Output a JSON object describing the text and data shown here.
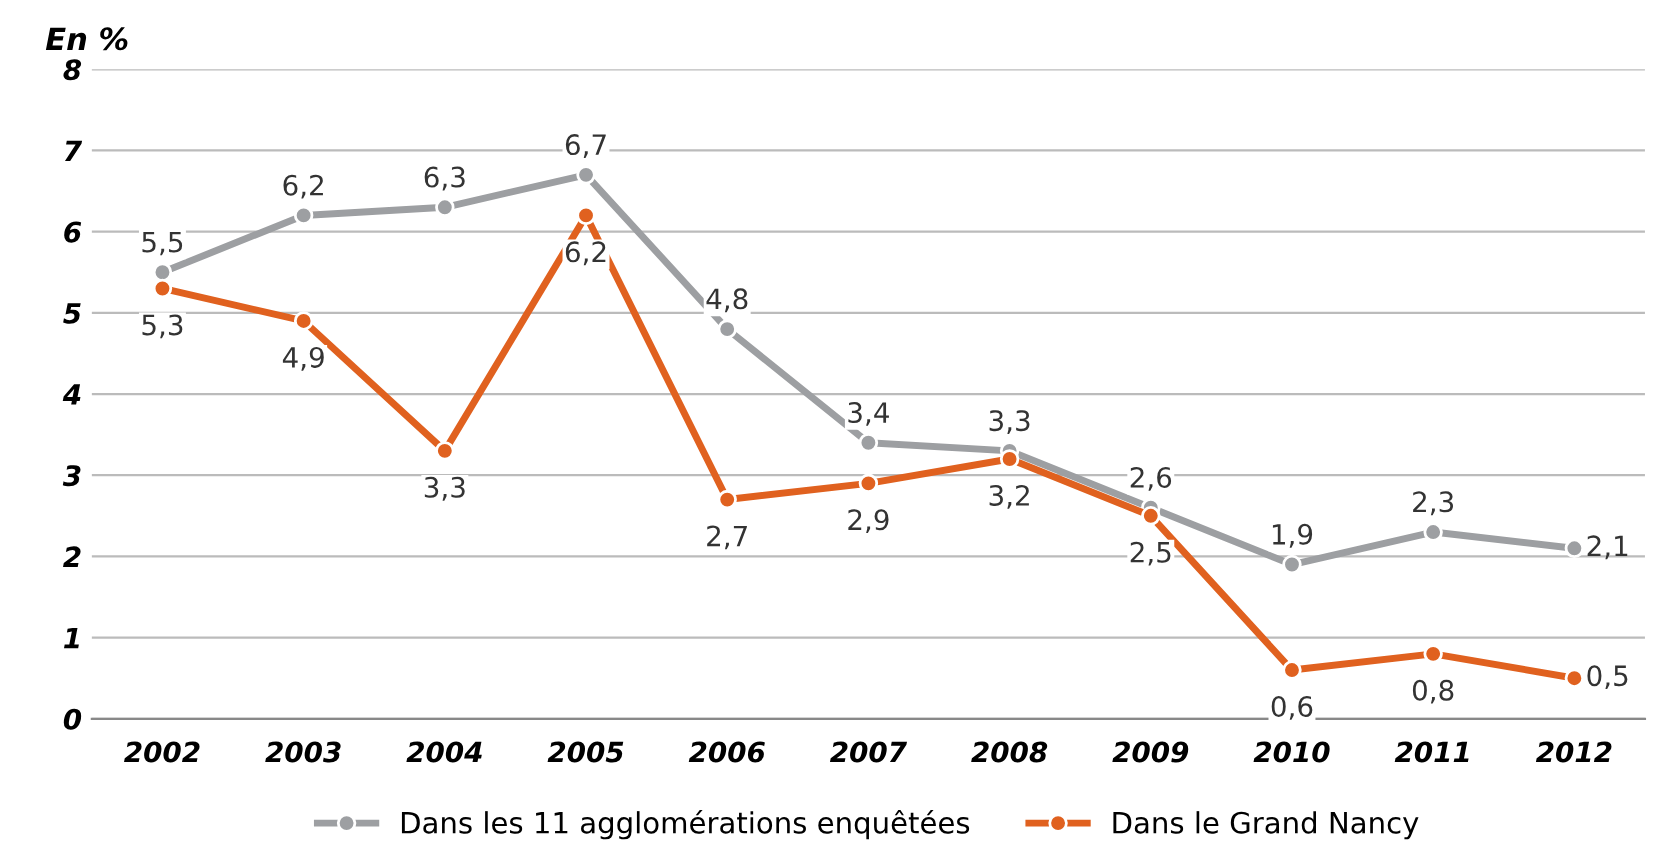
{
  "chart_data": {
    "type": "line",
    "ylabel": "En %",
    "categories": [
      "2002",
      "2003",
      "2004",
      "2005",
      "2006",
      "2007",
      "2008",
      "2009",
      "2010",
      "2011",
      "2012"
    ],
    "series": [
      {
        "name": "Dans les 11 agglomérations enquêtées",
        "color": "#9d9fa2",
        "values": [
          5.5,
          6.2,
          6.3,
          6.7,
          4.8,
          3.4,
          3.3,
          2.6,
          1.9,
          2.3,
          2.1
        ],
        "value_labels": [
          "5,5",
          "6,2",
          "6,3",
          "6,7",
          "4,8",
          "3,4",
          "3,3",
          "2,6",
          "1,9",
          "2,3",
          "2,1"
        ]
      },
      {
        "name": "Dans le Grand Nancy",
        "color": "#e0611f",
        "values": [
          5.3,
          4.9,
          3.3,
          6.2,
          2.7,
          2.9,
          3.2,
          2.5,
          0.6,
          0.8,
          0.5
        ],
        "value_labels": [
          "5,3",
          "4,9",
          "3,3",
          "6,2",
          "2,7",
          "2,9",
          "3,2",
          "2,5",
          "0,6",
          "0,8",
          "0,5"
        ]
      }
    ],
    "ylim": [
      0,
      8
    ],
    "yticks": [
      0,
      1,
      2,
      3,
      4,
      5,
      6,
      7,
      8
    ],
    "grid": "y",
    "legend": "bottom",
    "marker": "circle",
    "line_style": "solid"
  }
}
